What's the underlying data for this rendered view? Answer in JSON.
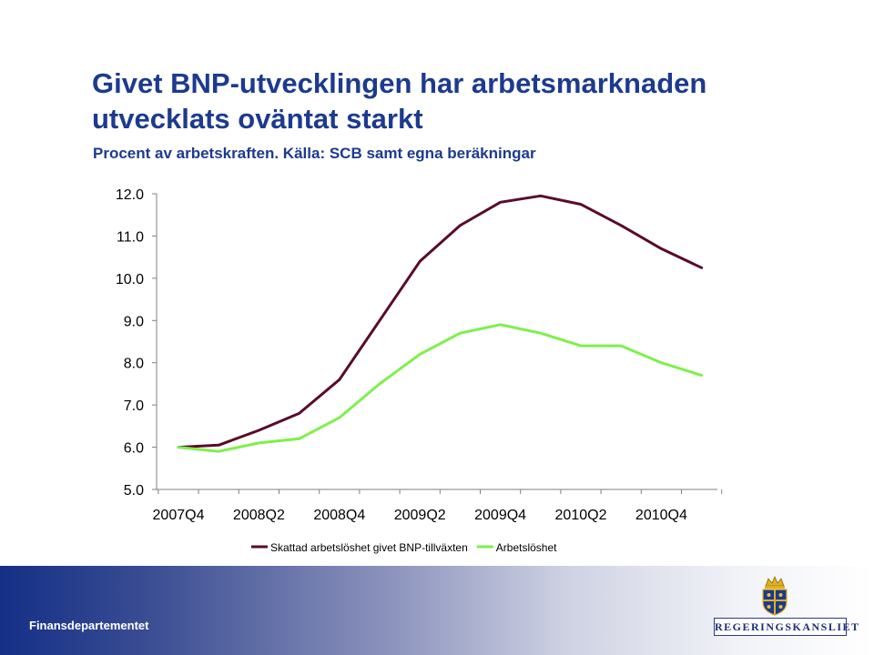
{
  "slide": {
    "title_line1": "Givet BNP-utvecklingen har arbetsmarknaden",
    "title_line2": "utvecklats oväntat starkt",
    "subtitle": "Procent av arbetskraften. Källa: SCB samt egna beräkningar",
    "footer_department": "Finansdepartementet",
    "logo_text": "REGERINGSKANSLIET"
  },
  "colors": {
    "title": "#1c3a8f",
    "series1": "#5a0a2c",
    "series2": "#7ef04a"
  },
  "chart_data": {
    "type": "line",
    "title": "",
    "xlabel": "",
    "ylabel": "",
    "ylim": [
      5.0,
      12.0
    ],
    "yticks": [
      "5.0",
      "6.0",
      "7.0",
      "8.0",
      "9.0",
      "10.0",
      "11.0",
      "12.0"
    ],
    "x": [
      "2007Q4",
      "2008Q1",
      "2008Q2",
      "2008Q3",
      "2008Q4",
      "2009Q1",
      "2009Q2",
      "2009Q3",
      "2009Q4",
      "2010Q1",
      "2010Q2",
      "2010Q3",
      "2010Q4",
      "2011Q1"
    ],
    "xtick_labels": [
      "2007Q4",
      "2008Q2",
      "2008Q4",
      "2009Q2",
      "2009Q4",
      "2010Q2",
      "2010Q4"
    ],
    "legend_position": "bottom",
    "series": [
      {
        "name": "Skattad arbetslöshet givet BNP-tillväxten",
        "color": "#5a0a2c",
        "values": [
          6.0,
          6.05,
          6.4,
          6.8,
          7.6,
          9.0,
          10.4,
          11.25,
          11.8,
          11.95,
          11.75,
          11.25,
          10.7,
          10.25
        ]
      },
      {
        "name": "Arbetslöshet",
        "color": "#7ef04a",
        "values": [
          6.0,
          5.9,
          6.1,
          6.2,
          6.7,
          7.5,
          8.2,
          8.7,
          8.9,
          8.7,
          8.4,
          8.4,
          8.0,
          7.7
        ]
      }
    ]
  }
}
